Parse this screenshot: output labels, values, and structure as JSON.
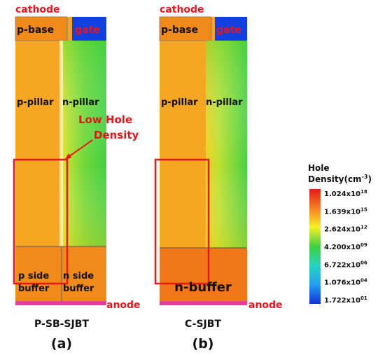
{
  "panels": [
    {
      "cathode": "cathode",
      "p_base": "p-base",
      "gate": "gate",
      "p_pillar": "p-pillar",
      "n_pillar": "n-pillar",
      "buffer_left": [
        "p side",
        "buffer"
      ],
      "buffer_right": [
        "n side",
        "buffer"
      ],
      "anode": "anode",
      "annotation": [
        "Low Hole",
        "Density"
      ],
      "name": "P-SB-SJBT",
      "label": "(a)"
    },
    {
      "cathode": "cathode",
      "p_base": "p-base",
      "gate": "gate",
      "p_pillar": "p-pillar",
      "n_pillar": "n-pillar",
      "buffer": "n-buffer",
      "anode": "anode",
      "name": "C-SJBT",
      "label": "(b)"
    }
  ],
  "colorbar": {
    "title": [
      "Hole",
      "Density(cm",
      "-3",
      ")"
    ],
    "labels": [
      {
        "base": "1.024x10",
        "exp": "18"
      },
      {
        "base": "1.639x10",
        "exp": "15"
      },
      {
        "base": "2.624x10",
        "exp": "12"
      },
      {
        "base": "4.200x10",
        "exp": "09"
      },
      {
        "base": "6.722x10",
        "exp": "06"
      },
      {
        "base": "1.076x10",
        "exp": "04"
      },
      {
        "base": "1.722x10",
        "exp": "01"
      }
    ]
  }
}
